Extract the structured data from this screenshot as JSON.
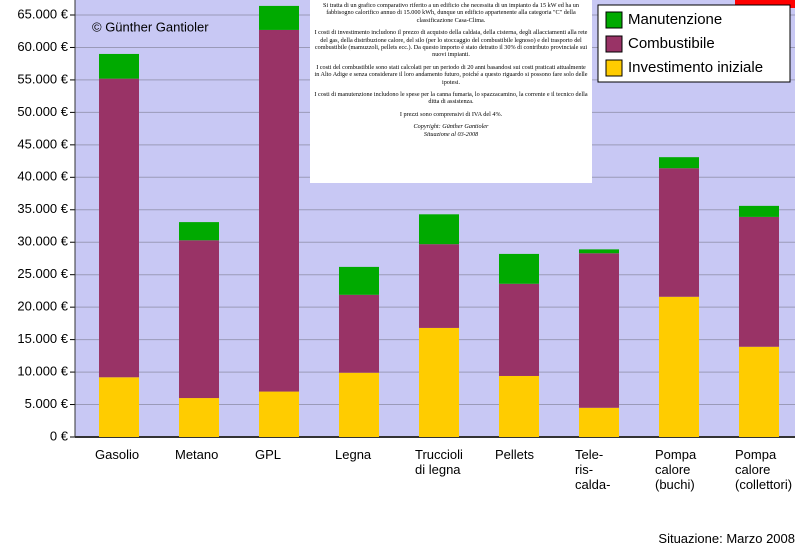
{
  "chart_data": {
    "type": "stacked_bar",
    "copyright": "© Günther Gantioler",
    "categories": [
      "Gasolio",
      "Metano",
      "GPL",
      "Legna",
      "Truccioli\ndi legna",
      "Pellets",
      "Tele-\nris-\ncalda-",
      "Pompa\ncalore\n(buchi)",
      "Pompa\ncalore\n(collettori)"
    ],
    "series": [
      {
        "name": "Investimento iniziale",
        "color": "#ffcc00",
        "values": [
          9200,
          6000,
          7000,
          9900,
          16800,
          9400,
          4500,
          21600,
          13900
        ]
      },
      {
        "name": "Combustibile",
        "color": "#993366",
        "values": [
          46000,
          24300,
          55700,
          12000,
          12900,
          14200,
          23800,
          19800,
          20000
        ]
      },
      {
        "name": "Manutenzione",
        "color": "#00aa00",
        "values": [
          3800,
          2800,
          3700,
          4300,
          4600,
          4600,
          600,
          1700,
          1700
        ]
      }
    ],
    "ylim": [
      0,
      65000
    ],
    "yticks": [
      {
        "value": 0,
        "label": "0 €"
      },
      {
        "value": 5000,
        "label": "5.000 €"
      },
      {
        "value": 10000,
        "label": "10.000 €"
      },
      {
        "value": 15000,
        "label": "15.000 €"
      },
      {
        "value": 20000,
        "label": "20.000 €"
      },
      {
        "value": 25000,
        "label": "25.000 €"
      },
      {
        "value": 30000,
        "label": "30.000 €"
      },
      {
        "value": 35000,
        "label": "35.000 €"
      },
      {
        "value": 40000,
        "label": "40.000 €"
      },
      {
        "value": 45000,
        "label": "45.000 €"
      },
      {
        "value": 50000,
        "label": "50.000 €"
      },
      {
        "value": 55000,
        "label": "55.000 €"
      },
      {
        "value": 60000,
        "label": "60.000 €"
      },
      {
        "value": 65000,
        "label": "65.000 €"
      }
    ],
    "grid": true,
    "legend": "top-right",
    "note": [
      "Si tratta di un grafico comparativo riferito a un edificio che necessita di un impianto da 15 kW ed ha un fabbisogno calorifico annuo di 15.000 kWh, dunque un edificio appartenente alla categoria \"C\" della classificazione Casa-Clima.",
      "I costi di investimento includono il prezzo di acquisto della caldaia, della cisterna, degli allacciamenti alla rete del gas, della distribuzione calore, del silo (per lo stoccaggio del combustibile legnoso) e del trasporto del combustibile (mamuzzoli, pellets ecc.). Da questo importo è stato detratto il 30% di contributo provinciale sui nuovi impianti.",
      "I costi del combustibile sono stati calcolati per un periodo di 20 anni basandosi sui costi praticati attualmente in Alto Adige e senza considerare il loro andamento futuro, poiché a questo riguardo si possono fare solo delle ipotesi.",
      "I costi di manutenzione includono le spese per la canna fumaria, lo spazzacamino, la corrente e il tecnico della ditta di assistenza.",
      "I prezzi sono comprensivi di IVA del 4%.",
      "Copyright: Günther Gantioler",
      "Situazione al 03-2008"
    ],
    "footer": "Situazione: Marzo 2008"
  }
}
